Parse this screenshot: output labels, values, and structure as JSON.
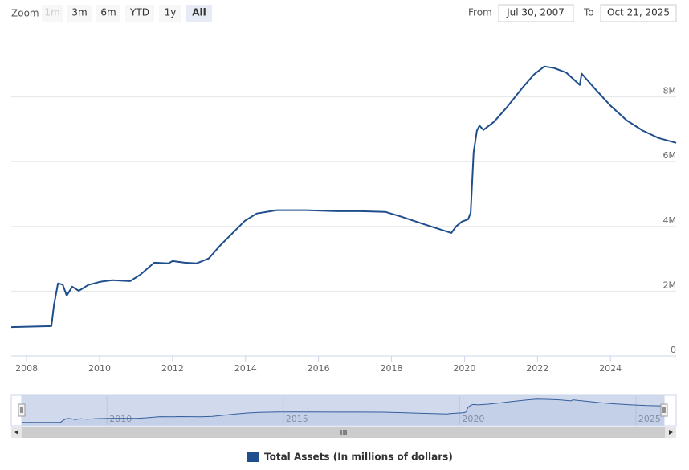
{
  "chart_data": {
    "type": "line",
    "range_selector": {
      "zoom_label": "Zoom",
      "buttons": [
        "1m",
        "3m",
        "6m",
        "YTD",
        "1y",
        "All"
      ],
      "disabled_buttons": [
        0
      ],
      "selected_button": 5,
      "from_label": "From",
      "from": "Jul 30, 2007",
      "to_label": "To",
      "to": "Oct 21, 2025"
    },
    "x": [
      2007.58,
      2008.68,
      2008.75,
      2008.86,
      2008.99,
      2009.1,
      2009.25,
      2009.43,
      2009.69,
      2010.02,
      2010.35,
      2010.84,
      2011.12,
      2011.5,
      2011.89,
      2012.0,
      2012.33,
      2012.66,
      2012.99,
      2013.32,
      2013.65,
      2013.98,
      2014.31,
      2014.86,
      2015.63,
      2016.51,
      2017.17,
      2017.83,
      2018.27,
      2018.94,
      2019.64,
      2019.77,
      2019.93,
      2020.1,
      2020.17,
      2020.25,
      2020.34,
      2020.41,
      2020.52,
      2020.81,
      2021.14,
      2021.58,
      2021.91,
      2022.19,
      2022.46,
      2022.79,
      2023.16,
      2023.21,
      2023.56,
      2024.0,
      2024.44,
      2024.88,
      2025.32,
      2025.8
    ],
    "series": [
      {
        "name": "Total Assets (In millions of dollars)",
        "color": "#1f4e8c",
        "values": [
          890000,
          920000,
          1570000,
          2240000,
          2200000,
          1860000,
          2140000,
          2010000,
          2190000,
          2290000,
          2340000,
          2310000,
          2510000,
          2880000,
          2860000,
          2930000,
          2880000,
          2860000,
          3010000,
          3430000,
          3800000,
          4170000,
          4400000,
          4500000,
          4500000,
          4470000,
          4470000,
          4450000,
          4300000,
          4050000,
          3800000,
          4000000,
          4150000,
          4220000,
          4420000,
          6290000,
          6960000,
          7110000,
          6980000,
          7230000,
          7650000,
          8270000,
          8700000,
          8940000,
          8890000,
          8750000,
          8370000,
          8720000,
          8270000,
          7730000,
          7280000,
          6960000,
          6730000,
          6580000
        ]
      }
    ],
    "xlim": [
      2007.58,
      2025.8
    ],
    "ylim": [
      0,
      10000000
    ],
    "xticks": [
      2008,
      2010,
      2012,
      2014,
      2016,
      2018,
      2020,
      2022,
      2024
    ],
    "yticks": [
      0,
      {
        "value": 2000000,
        "label": "2M"
      },
      {
        "value": 4000000,
        "label": "4M"
      },
      {
        "value": 6000000,
        "label": "6M"
      },
      {
        "value": 8000000,
        "label": "8M"
      }
    ],
    "grid": true,
    "navigator": {
      "xticks": [
        2010,
        2015,
        2020,
        2025
      ]
    }
  }
}
